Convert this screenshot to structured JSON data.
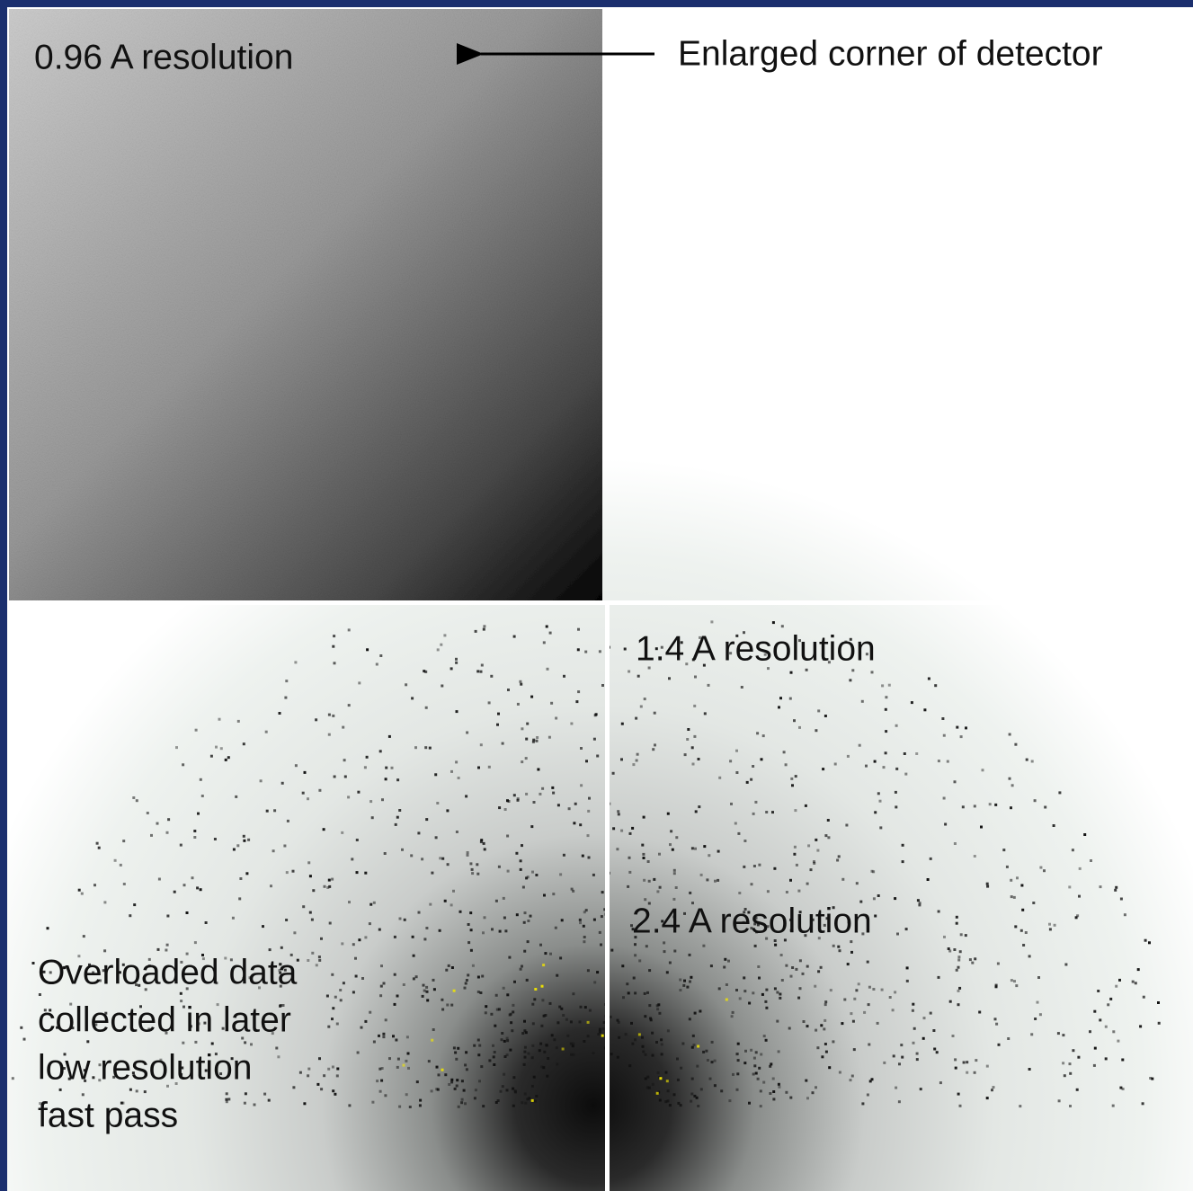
{
  "labels": {
    "corner_resolution": "0.96 A resolution",
    "arrow_caption": "Enlarged corner of detector",
    "mid_resolution": "1.4 A resolution",
    "low_resolution": "2.4 A resolution",
    "overloaded_note": [
      "Overloaded data",
      "collected in later",
      "low resolution",
      "fast pass"
    ]
  }
}
